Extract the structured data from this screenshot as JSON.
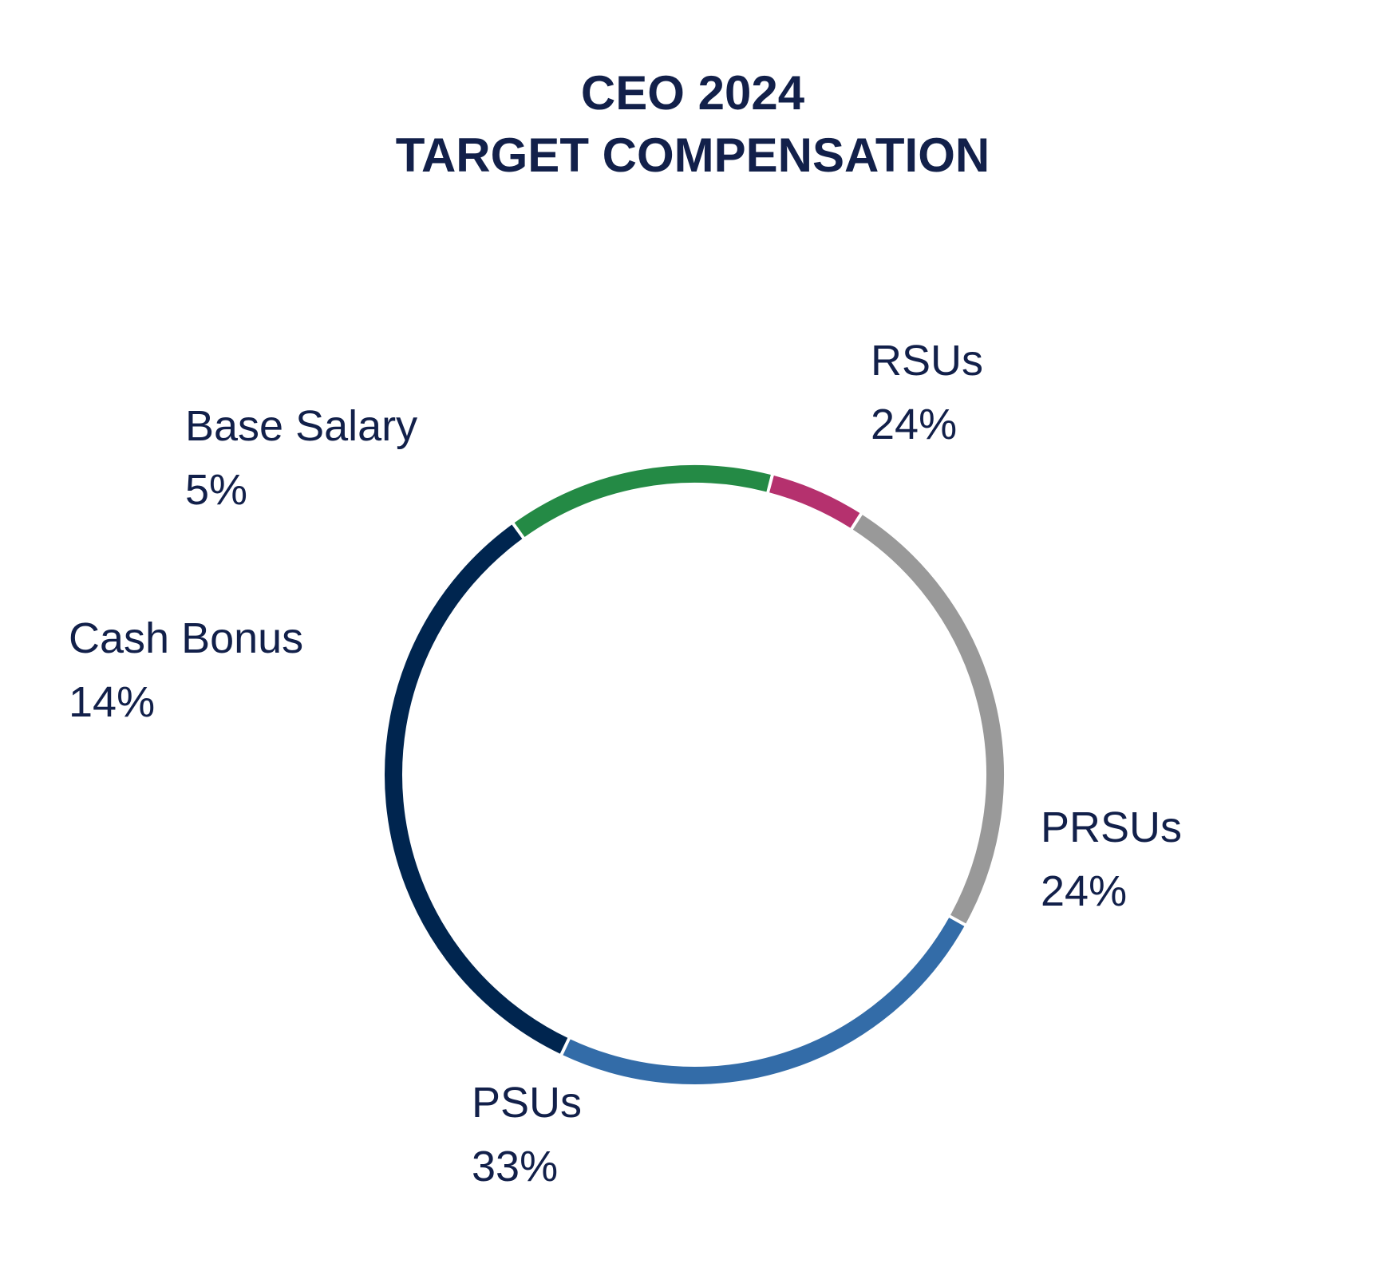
{
  "chart_data": {
    "type": "pie",
    "style": "thin-ring",
    "title": "CEO 2024",
    "subtitle": "TARGET COMPENSATION",
    "start_angle_deg": -29,
    "direction": "counterclockwise",
    "slices": [
      {
        "name": "RSUs",
        "value": 24,
        "label": "24%",
        "color": "#999999"
      },
      {
        "name": "Base Salary",
        "value": 5,
        "label": "5%",
        "color": "#b5316e"
      },
      {
        "name": "Cash Bonus",
        "value": 14,
        "label": "14%",
        "color": "#248a45"
      },
      {
        "name": "PSUs",
        "value": 33,
        "label": "33%",
        "color": "#00254f"
      },
      {
        "name": "PRSUs",
        "value": 24,
        "label": "24%",
        "color": "#336ca8"
      }
    ]
  }
}
